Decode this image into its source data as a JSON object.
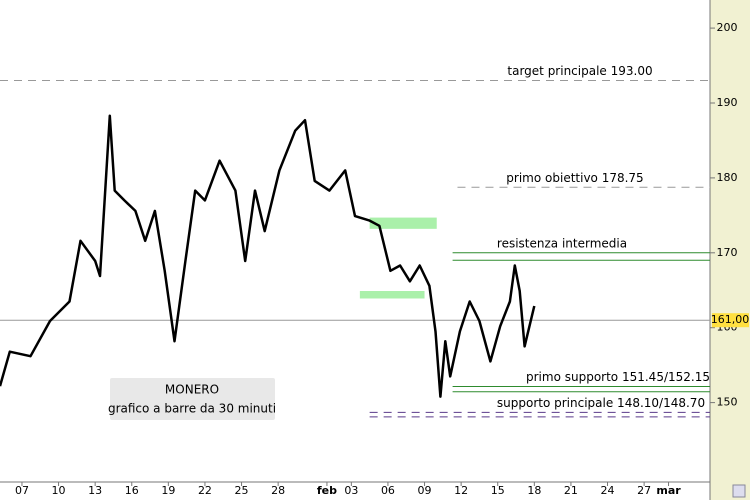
{
  "chart_data": {
    "type": "line",
    "series": [
      {
        "name": "MONERO",
        "color": "#000000",
        "x": [
          -1.8,
          -1.0,
          0.7,
          2.3,
          3.9,
          4.8,
          6.0,
          6.4,
          7.2,
          7.6,
          8.4,
          9.3,
          10.1,
          10.9,
          11.7,
          12.5,
          13.4,
          14.2,
          15.0,
          16.2,
          17.5,
          18.3,
          19.1,
          19.9,
          21.1,
          22.4,
          23.2,
          24.0,
          25.2,
          26.5,
          27.3,
          28.5,
          29.3,
          30.2,
          31.0,
          31.8,
          32.6,
          33.4,
          33.9,
          34.3,
          34.7,
          35.1,
          35.9,
          36.7,
          37.5,
          38.4,
          39.2,
          40.0,
          40.4,
          40.8,
          41.2,
          42.0
        ],
        "values": [
          152.2,
          156.8,
          156.2,
          160.9,
          163.5,
          171.6,
          168.9,
          166.9,
          188.3,
          178.3,
          177.0,
          175.6,
          171.6,
          175.6,
          167.6,
          158.2,
          168.9,
          178.3,
          177.0,
          182.3,
          178.3,
          168.9,
          178.3,
          172.9,
          181.0,
          186.3,
          187.7,
          179.6,
          178.3,
          181.0,
          174.9,
          174.3,
          173.6,
          167.6,
          168.3,
          166.2,
          168.3,
          165.6,
          159.5,
          150.8,
          158.2,
          153.5,
          159.5,
          163.5,
          160.9,
          155.5,
          160.2,
          163.5,
          168.3,
          164.9,
          157.5,
          162.9
        ]
      }
    ],
    "xlim": [
      -1.8,
      56.4
    ],
    "xticks": [
      {
        "value": 0,
        "label": "07"
      },
      {
        "value": 3,
        "label": "10"
      },
      {
        "value": 6,
        "label": "13"
      },
      {
        "value": 9,
        "label": "16"
      },
      {
        "value": 12,
        "label": "19"
      },
      {
        "value": 15,
        "label": "22"
      },
      {
        "value": 18,
        "label": "25"
      },
      {
        "value": 21,
        "label": "28"
      },
      {
        "value": 25,
        "label": "feb"
      },
      {
        "value": 27,
        "label": "03"
      },
      {
        "value": 30,
        "label": "06"
      },
      {
        "value": 33,
        "label": "09"
      },
      {
        "value": 36,
        "label": "12"
      },
      {
        "value": 39,
        "label": "15"
      },
      {
        "value": 42,
        "label": "18"
      },
      {
        "value": 45,
        "label": "21"
      },
      {
        "value": 48,
        "label": "24"
      },
      {
        "value": 51,
        "label": "27"
      },
      {
        "value": 53,
        "label": "mar"
      }
    ],
    "ylim": [
      139.4,
      203.75
    ],
    "yticks": [
      150,
      160,
      170,
      180,
      190,
      200
    ],
    "levels": [
      {
        "label": "target principale 193.00",
        "values": [
          193.0
        ],
        "x_start": -1.8,
        "color": "#999999",
        "dashed": true
      },
      {
        "label": "primo obiettivo 178.75",
        "values": [
          178.75
        ],
        "x_start": 35.7,
        "color": "#999999",
        "dashed": true
      },
      {
        "label": "resistenza intermedia",
        "values": [
          170.0,
          169.0
        ],
        "x_start": 35.3,
        "color": "#2e8b2e",
        "dashed": false
      },
      {
        "label": "primo supporto 151.45/152.15",
        "values": [
          151.45,
          152.15
        ],
        "x_start": 35.3,
        "color": "#2e8b2e",
        "dashed": false
      },
      {
        "label": "supporto principale 148.10/148.70",
        "values": [
          148.1,
          148.7
        ],
        "x_start": 28.5,
        "color": "#5a3a8a",
        "dashed": true
      }
    ],
    "zones": [
      {
        "x": [
          28.5,
          34.0
        ],
        "y": [
          173.2,
          174.7
        ],
        "color": "#aaf0aa"
      },
      {
        "x": [
          27.7,
          33.0
        ],
        "y": [
          163.9,
          164.9
        ],
        "color": "#aaf0aa"
      }
    ],
    "current_price": {
      "value": 161,
      "label": "161,00"
    },
    "info": [
      "MONERO",
      "grafico a barre da 30 minuti"
    ]
  }
}
